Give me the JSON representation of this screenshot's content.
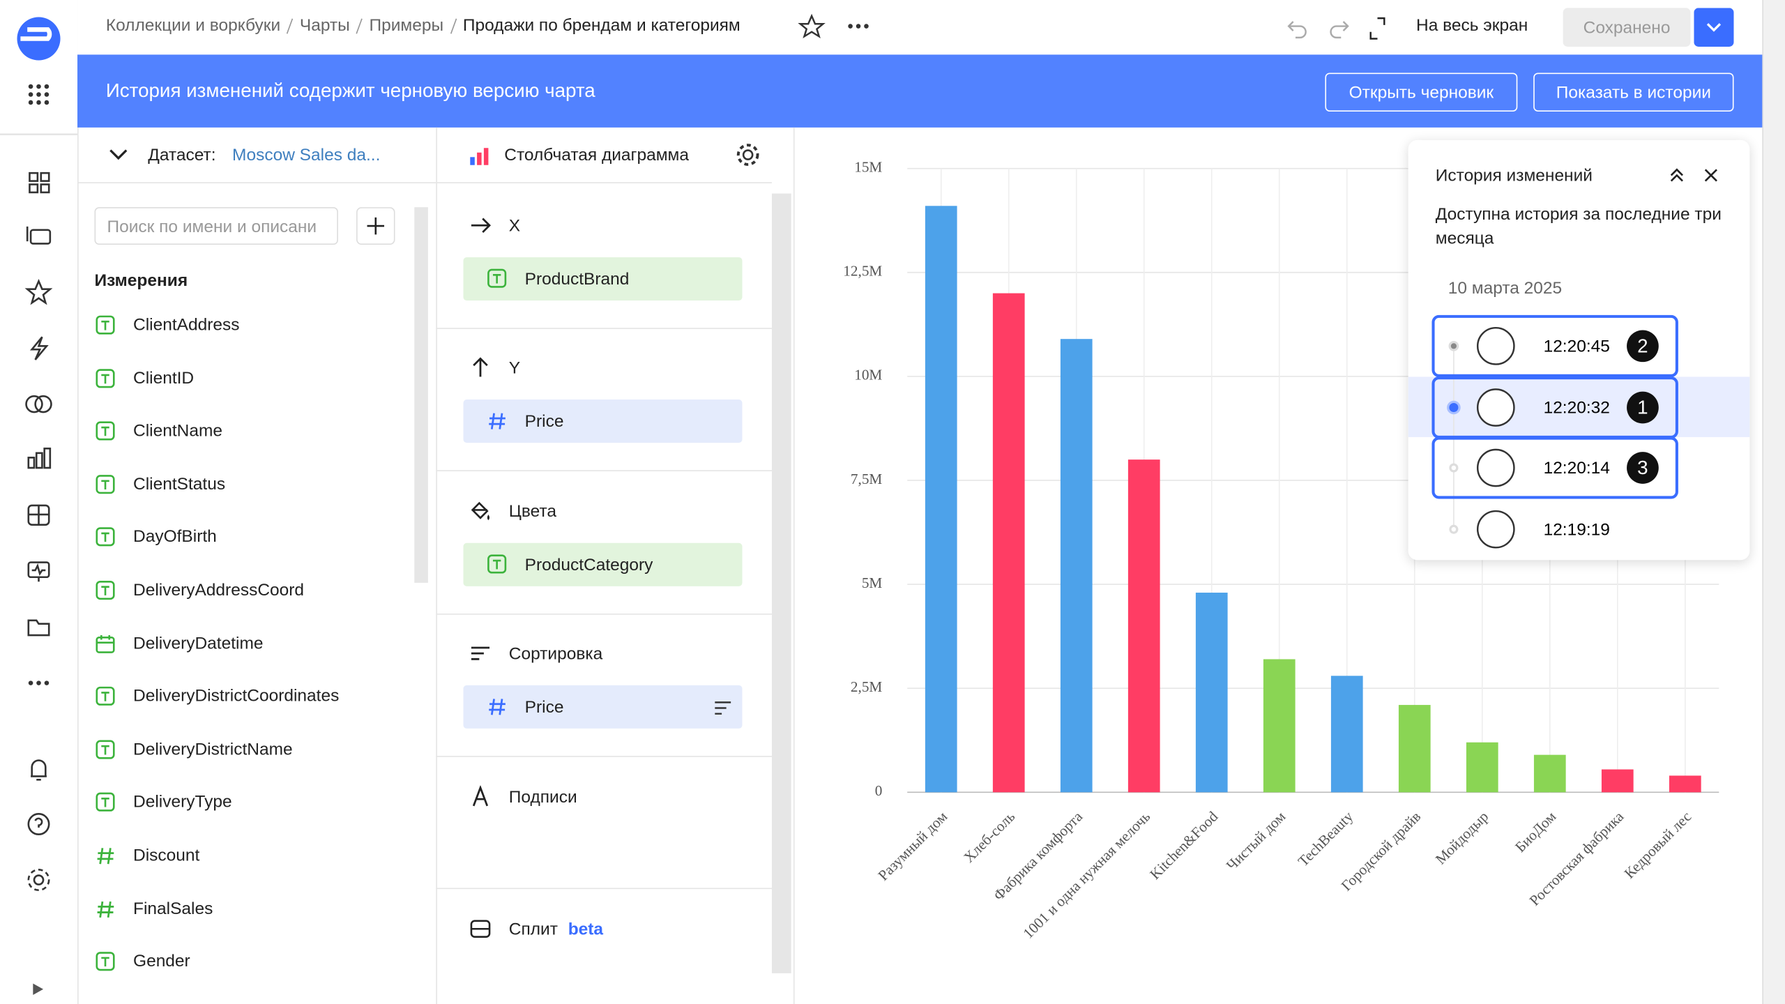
{
  "header": {
    "breadcrumbs": [
      "Коллекции и воркбуки",
      "Чарты",
      "Примеры"
    ],
    "title": "Продажи по брендам и категориям",
    "fullscreen": "На весь экран",
    "saved": "Сохранено"
  },
  "banner": {
    "text": "История изменений содержит черновую версию чарта",
    "buttons": [
      "Открыть черновик",
      "Показать в истории"
    ]
  },
  "dataset": {
    "label": "Датасет:",
    "name": "Moscow Sales da...",
    "search_placeholder": "Поиск по имени и описани",
    "section": "Измерения",
    "fields": [
      "ClientAddress",
      "ClientID",
      "ClientName",
      "ClientStatus",
      "DayOfBirth",
      "DeliveryAddressCoord",
      "DeliveryDatetime",
      "DeliveryDistrictCoordinates",
      "DeliveryDistrictName",
      "DeliveryType",
      "Discount",
      "FinalSales",
      "Gender"
    ]
  },
  "wizard": {
    "chart_type": "Столбчатая диаграмма",
    "sections": [
      {
        "title": "X",
        "field": "ProductBrand"
      },
      {
        "title": "Y",
        "field": "Price"
      },
      {
        "title": "Цвета",
        "field": "ProductCategory"
      },
      {
        "title": "Сортировка",
        "field": "Price"
      },
      {
        "title": "Подписи"
      },
      {
        "title": "Сплит",
        "badge": "beta"
      }
    ]
  },
  "chart": {
    "type": "bar",
    "categories": [
      "Разумный дом",
      "Хлеб-соль",
      "Фабрика комфорта",
      "1001 и одна нужная мелочь",
      "Kitchen&Food",
      "Чистый дом",
      "TechBeauty",
      "Городской драйв",
      "Мойдодыр",
      "БиоДом",
      "Ростовская фабрика",
      "Кедровый лес"
    ],
    "values": [
      14100000,
      12000000,
      10900000,
      8000000,
      4800000,
      3200000,
      2800000,
      2100000,
      1200000,
      900000,
      550000,
      400000
    ],
    "colors": [
      "#4da2ea",
      "#ff3d64",
      "#4da2ea",
      "#ff3d64",
      "#4da2ea",
      "#8ad554",
      "#4da2ea",
      "#8ad554",
      "#8ad554",
      "#8ad554",
      "#ff3d64",
      "#ff3d64"
    ],
    "ylim": [
      0,
      15000000
    ],
    "yticks": [
      0,
      {
        "value": 2500000,
        "label": "2,5M"
      },
      {
        "value": 5000000,
        "label": "5M"
      },
      {
        "value": 7500000,
        "label": "7,5M"
      },
      {
        "value": 10000000,
        "label": "10M"
      },
      {
        "value": 12500000,
        "label": "12,5M"
      },
      {
        "value": 15000000,
        "label": "15M"
      }
    ],
    "grid": true
  },
  "history": {
    "title": "История изменений",
    "description": "Доступна история за последние три месяца",
    "date": "10 марта 2025",
    "entries": [
      {
        "time": "12:20:45",
        "badge": 2
      },
      {
        "time": "12:20:32",
        "badge": 1
      },
      {
        "time": "12:20:14",
        "badge": 3
      },
      {
        "time": "12:19:19"
      }
    ]
  }
}
